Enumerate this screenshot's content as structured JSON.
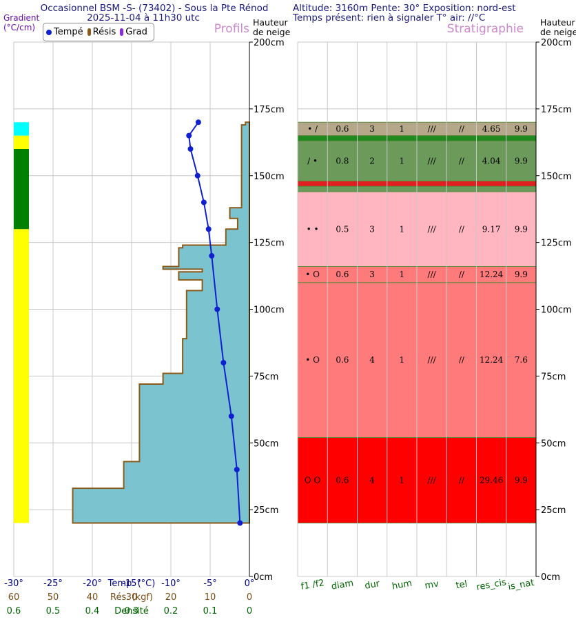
{
  "header": {
    "title_line1": "Occasionnel BSM -S- (73402) - Sous la Pte Rénod",
    "title_line2": "2025-11-04 à 11h30 utc",
    "altitude_line": "Altitude: 3160m Pente: 30° Exposition: nord-est",
    "weather_line": "Temps présent: rien à signaler T° air: //°C"
  },
  "left_panel": {
    "gradient_label": "Gradient",
    "gradient_unit": "(°C/cm)",
    "section_title": "Profils",
    "legend": [
      "Tempé",
      "Résis",
      "Grad"
    ],
    "height_label_1": "Hauteur",
    "height_label_2": "de neige"
  },
  "right_panel": {
    "section_title": "Stratigraphie",
    "height_label_1": "Hauteur",
    "height_label_2": "de neige"
  },
  "colors": {
    "temp": "#1020d0",
    "resistance_fill": "#7bc3ce",
    "resistance_line": "#8b5a1b",
    "axis_temp": "#000080",
    "axis_res": "#7a4a10",
    "axis_dens": "#006400",
    "strat_header": "#6a0dad"
  },
  "chart_data": {
    "type": "snow-profile",
    "y_axis": {
      "label": "Hauteur de neige",
      "unit": "cm",
      "range": [
        0,
        200
      ],
      "ticks": [
        "0cm",
        "25cm",
        "50cm",
        "75cm",
        "100cm",
        "125cm",
        "150cm",
        "175cm",
        "200cm"
      ]
    },
    "x_axes": [
      {
        "label": "Temp. (°C)",
        "range": [
          -30,
          0
        ],
        "ticks": [
          "-30°",
          "-25°",
          "-20°",
          "-15°",
          "-10°",
          "-5°",
          "0°"
        ]
      },
      {
        "label": "Rés. (kgf)",
        "range": [
          60,
          0
        ],
        "ticks": [
          "60",
          "50",
          "40",
          "30",
          "20",
          "10",
          "0"
        ]
      },
      {
        "label": "Densité",
        "range": [
          0.6,
          0
        ],
        "ticks": [
          "0.6",
          "0.5",
          "0.4",
          "0.3",
          "0.2",
          "0.1",
          "0"
        ]
      }
    ],
    "temperature_profile": {
      "name": "Tempé",
      "points": [
        {
          "h": 170,
          "t": -6.5
        },
        {
          "h": 165,
          "t": -7.7
        },
        {
          "h": 160,
          "t": -7.5
        },
        {
          "h": 150,
          "t": -6.6
        },
        {
          "h": 140,
          "t": -5.8
        },
        {
          "h": 130,
          "t": -5.2
        },
        {
          "h": 120,
          "t": -4.8
        },
        {
          "h": 100,
          "t": -4.1
        },
        {
          "h": 80,
          "t": -3.3
        },
        {
          "h": 60,
          "t": -2.3
        },
        {
          "h": 40,
          "t": -1.6
        },
        {
          "h": 20,
          "t": -1.2
        }
      ]
    },
    "resistance_profile": {
      "name": "Résis",
      "layers": [
        {
          "bottom": 20,
          "top": 33,
          "r": 45
        },
        {
          "bottom": 33,
          "top": 43,
          "r": 32
        },
        {
          "bottom": 43,
          "top": 72,
          "r": 28
        },
        {
          "bottom": 72,
          "top": 76,
          "r": 22
        },
        {
          "bottom": 76,
          "top": 89,
          "r": 17
        },
        {
          "bottom": 89,
          "top": 107,
          "r": 16
        },
        {
          "bottom": 107,
          "top": 111,
          "r": 12
        },
        {
          "bottom": 111,
          "top": 114,
          "r": 18
        },
        {
          "bottom": 114,
          "top": 115,
          "r": 12
        },
        {
          "bottom": 115,
          "top": 116,
          "r": 22
        },
        {
          "bottom": 116,
          "top": 123,
          "r": 18
        },
        {
          "bottom": 123,
          "top": 124,
          "r": 17
        },
        {
          "bottom": 124,
          "top": 130,
          "r": 6
        },
        {
          "bottom": 130,
          "top": 134,
          "r": 3
        },
        {
          "bottom": 134,
          "top": 138,
          "r": 5
        },
        {
          "bottom": 138,
          "top": 169,
          "r": 2
        },
        {
          "bottom": 169,
          "top": 170,
          "r": 1
        }
      ]
    },
    "gradient_bar": {
      "name": "Grad",
      "segments": [
        {
          "bottom": 20,
          "top": 130,
          "color": "#ffff00"
        },
        {
          "bottom": 130,
          "top": 160,
          "color": "#008000"
        },
        {
          "bottom": 160,
          "top": 165,
          "color": "#ffff00"
        },
        {
          "bottom": 165,
          "top": 170,
          "color": "#00ffff"
        }
      ]
    },
    "stratigraphy": {
      "columns": [
        "f1 /f2",
        "diam",
        "dur",
        "hum",
        "mv",
        "tel",
        "res_cis",
        "is_nat"
      ],
      "layers": [
        {
          "bottom": 20,
          "top": 52,
          "color": "#ff0000",
          "values": [
            "O O",
            "0.6",
            "4",
            "1",
            "///",
            "//",
            "29.46",
            "9.9"
          ]
        },
        {
          "bottom": 52,
          "top": 110,
          "color": "#ff7b7b",
          "values": [
            "• O",
            "0.6",
            "4",
            "1",
            "///",
            "//",
            "12.24",
            "7.6"
          ]
        },
        {
          "bottom": 110,
          "top": 116,
          "color": "#ff7b7b",
          "values": [
            "• O",
            "0.6",
            "3",
            "1",
            "///",
            "//",
            "12.24",
            "9.9"
          ]
        },
        {
          "bottom": 116,
          "top": 144,
          "color": "#ffb6c1",
          "values": [
            "• •",
            "0.5",
            "3",
            "1",
            "///",
            "//",
            "9.17",
            "9.9"
          ]
        },
        {
          "bottom": 144,
          "top": 146,
          "color": "#6b9a5a",
          "values": []
        },
        {
          "bottom": 146,
          "top": 148,
          "color": "#e02020",
          "values": []
        },
        {
          "bottom": 148,
          "top": 163,
          "color": "#6b9a5a",
          "values": [
            "/ •",
            "0.8",
            "2",
            "1",
            "///",
            "//",
            "4.04",
            "9.9"
          ]
        },
        {
          "bottom": 163,
          "top": 165,
          "color": "#1e8a1e",
          "values": []
        },
        {
          "bottom": 165,
          "top": 170,
          "color": "#b5a88a",
          "values": [
            "• /",
            "0.6",
            "3",
            "1",
            "///",
            "//",
            "4.65",
            "9.9"
          ]
        }
      ]
    }
  }
}
